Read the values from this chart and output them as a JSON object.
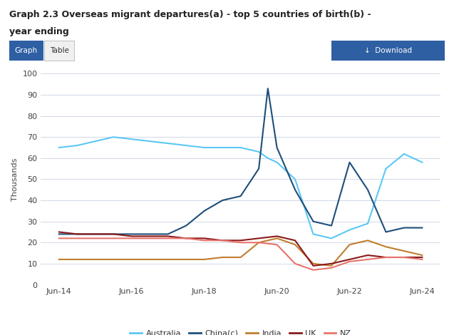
{
  "title_line1": "Graph 2.3 Overseas migrant departures(a) - top 5 countries of birth(b) -",
  "title_line2": "year ending",
  "xlabel": "",
  "ylabel": "Thousands",
  "ylim": [
    0,
    100
  ],
  "yticks": [
    0,
    10,
    20,
    30,
    40,
    50,
    60,
    70,
    80,
    90,
    100
  ],
  "xtick_labels": [
    "Jun-14",
    "Jun-16",
    "Jun-18",
    "Jun-20",
    "Jun-22",
    "Jun-24"
  ],
  "xtick_positions": [
    2014,
    2016,
    2018,
    2020,
    2022,
    2024
  ],
  "series": {
    "Australia": {
      "color": "#5bc8f5",
      "data_x": [
        2014,
        2014.5,
        2015,
        2015.5,
        2016,
        2016.5,
        2017,
        2017.5,
        2018,
        2018.5,
        2019,
        2019.5,
        2019.75,
        2020,
        2020.5,
        2021,
        2021.5,
        2022,
        2022.5,
        2023,
        2023.5,
        2024
      ],
      "data_y": [
        65,
        66,
        68,
        70,
        69,
        68,
        67,
        66,
        65,
        65,
        65,
        63,
        60,
        58,
        50,
        24,
        22,
        26,
        29,
        55,
        62,
        58
      ]
    },
    "China(c)": {
      "color": "#1f4e79",
      "data_x": [
        2014,
        2014.5,
        2015,
        2015.5,
        2016,
        2016.5,
        2017,
        2017.5,
        2018,
        2018.5,
        2019,
        2019.5,
        2019.75,
        2020,
        2020.25,
        2020.5,
        2021,
        2021.5,
        2022,
        2022.5,
        2023,
        2023.5,
        2024
      ],
      "data_y": [
        24,
        24,
        24,
        24,
        24,
        24,
        24,
        28,
        35,
        40,
        42,
        55,
        93,
        65,
        55,
        45,
        30,
        28,
        58,
        45,
        25,
        27,
        27
      ]
    },
    "India": {
      "color": "#c07d2e",
      "data_x": [
        2014,
        2014.5,
        2015,
        2015.5,
        2016,
        2016.5,
        2017,
        2017.5,
        2018,
        2018.5,
        2019,
        2019.5,
        2020,
        2020.5,
        2021,
        2021.5,
        2022,
        2022.5,
        2023,
        2023.5,
        2024
      ],
      "data_y": [
        12,
        12,
        12,
        12,
        12,
        12,
        12,
        12,
        12,
        13,
        13,
        20,
        22,
        19,
        10,
        9,
        19,
        21,
        18,
        16,
        14
      ]
    },
    "UK": {
      "color": "#8b1a1a",
      "data_x": [
        2014,
        2014.5,
        2015,
        2015.5,
        2016,
        2016.5,
        2017,
        2017.5,
        2018,
        2018.5,
        2019,
        2019.5,
        2020,
        2020.5,
        2021,
        2021.5,
        2022,
        2022.5,
        2023,
        2023.5,
        2024
      ],
      "data_y": [
        25,
        24,
        24,
        24,
        23,
        23,
        23,
        22,
        22,
        21,
        21,
        22,
        23,
        21,
        9,
        10,
        12,
        14,
        13,
        13,
        13
      ]
    },
    "NZ": {
      "color": "#e8736c",
      "data_x": [
        2014,
        2014.5,
        2015,
        2015.5,
        2016,
        2016.5,
        2017,
        2017.5,
        2018,
        2018.5,
        2019,
        2019.5,
        2020,
        2020.5,
        2021,
        2021.5,
        2022,
        2022.5,
        2023,
        2023.5,
        2024
      ],
      "data_y": [
        22,
        22,
        22,
        22,
        22,
        22,
        22,
        22,
        21,
        21,
        20,
        20,
        19,
        10,
        7,
        8,
        11,
        12,
        13,
        13,
        12
      ]
    }
  },
  "background_color": "#ffffff",
  "grid_color": "#d0d8e8",
  "tab_active_color": "#2e5fa3",
  "tab_bg_color": "#2e5fa3"
}
